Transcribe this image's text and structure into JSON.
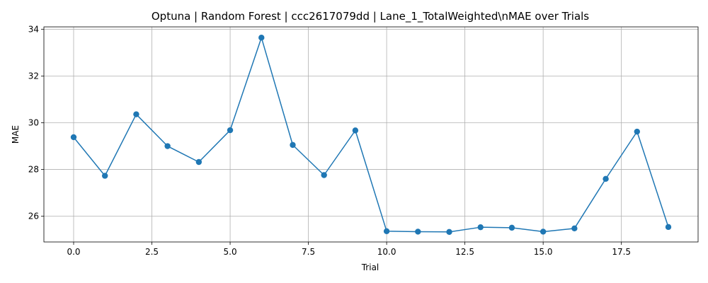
{
  "chart_data": {
    "type": "line",
    "title": "Optuna | Random Forest | ccc2617079dd | Lane_1_TotalWeighted\\nMAE over Trials",
    "xlabel": "Trial",
    "ylabel": "MAE",
    "xlim": [
      -0.95,
      19.95
    ],
    "ylim": [
      24.9,
      34.1
    ],
    "grid": true,
    "x_ticks": [
      0.0,
      2.5,
      5.0,
      7.5,
      10.0,
      12.5,
      15.0,
      17.5
    ],
    "x_tick_labels": [
      "0.0",
      "2.5",
      "5.0",
      "7.5",
      "10.0",
      "12.5",
      "15.0",
      "17.5"
    ],
    "y_ticks": [
      26,
      28,
      30,
      32,
      34
    ],
    "y_tick_labels": [
      "26",
      "28",
      "30",
      "32",
      "34"
    ],
    "line_color": "#1f77b4",
    "series": [
      {
        "x": [
          0,
          1,
          2,
          3,
          4,
          5,
          6,
          7,
          8,
          9,
          10,
          11,
          12,
          13,
          14,
          15,
          16,
          17,
          18,
          19
        ],
        "values": [
          29.38,
          27.73,
          30.36,
          29.0,
          28.32,
          29.68,
          33.64,
          29.05,
          27.76,
          29.67,
          25.36,
          25.34,
          25.33,
          25.53,
          25.51,
          25.34,
          25.48,
          27.6,
          29.62,
          25.54
        ]
      }
    ]
  }
}
